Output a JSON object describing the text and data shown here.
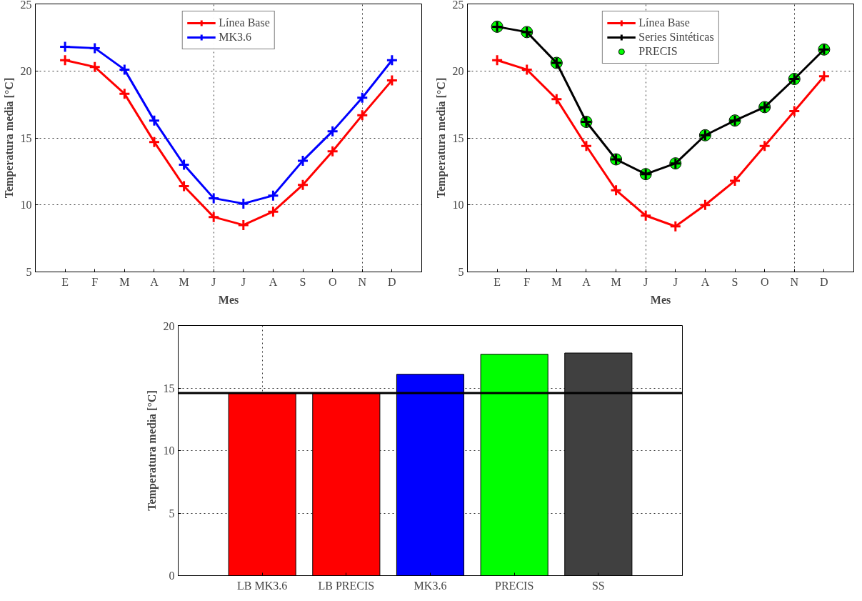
{
  "chart_data": [
    {
      "type": "line",
      "xlabel": "Mes",
      "ylabel": "Temperatura media [°C]",
      "categories": [
        "E",
        "F",
        "M",
        "A",
        "M",
        "J",
        "J",
        "A",
        "S",
        "O",
        "N",
        "D"
      ],
      "ylim": [
        5,
        25
      ],
      "yticks": [
        5,
        10,
        15,
        20,
        25
      ],
      "grid": true,
      "legend": "top",
      "marker": "cross",
      "line_style": "solid",
      "series": [
        {
          "name": "Línea Base",
          "color": "#ff0000",
          "values": [
            20.8,
            20.3,
            18.3,
            14.7,
            11.4,
            9.1,
            8.5,
            9.5,
            11.5,
            14.0,
            16.7,
            19.3
          ]
        },
        {
          "name": "MK3.6",
          "color": "#0000ff",
          "values": [
            21.8,
            21.7,
            20.1,
            16.3,
            13.0,
            10.5,
            10.1,
            10.7,
            13.3,
            15.5,
            18.0,
            20.8
          ]
        }
      ]
    },
    {
      "type": "line",
      "xlabel": "Mes",
      "ylabel": "Temperatura media [°C]",
      "categories": [
        "E",
        "F",
        "M",
        "A",
        "M",
        "J",
        "J",
        "A",
        "S",
        "O",
        "N",
        "D"
      ],
      "ylim": [
        5,
        25
      ],
      "yticks": [
        5,
        10,
        15,
        20,
        25
      ],
      "grid": true,
      "legend": "top",
      "marker": "cross",
      "line_style": "solid",
      "series": [
        {
          "name": "Línea Base",
          "color": "#ff0000",
          "values": [
            20.8,
            20.1,
            17.9,
            14.4,
            11.1,
            9.2,
            8.4,
            10.0,
            11.8,
            14.4,
            17.0,
            19.6
          ]
        },
        {
          "name": "Series Sintéticas",
          "color": "#000000",
          "values": [
            23.3,
            22.9,
            20.6,
            16.2,
            13.4,
            12.3,
            13.1,
            15.2,
            16.3,
            17.3,
            19.4,
            21.6
          ]
        },
        {
          "name": "PRECIS",
          "type": "scatter",
          "marker": "circle",
          "color": "#00ff00",
          "values": [
            23.3,
            22.9,
            20.6,
            16.2,
            13.4,
            12.3,
            13.1,
            15.2,
            16.3,
            17.3,
            19.4,
            21.6
          ]
        }
      ]
    },
    {
      "type": "bar",
      "ylabel": "Temperatura media [°C]",
      "categories": [
        "LB MK3.6",
        "LB PRECIS",
        "MK3.6",
        "PRECIS",
        "SS"
      ],
      "values": [
        14.6,
        14.6,
        16.1,
        17.7,
        17.8
      ],
      "colors": [
        "#ff0000",
        "#ff0000",
        "#0000ff",
        "#00ff00",
        "#404040"
      ],
      "ylim": [
        0,
        20
      ],
      "yticks": [
        0,
        5,
        10,
        15,
        20
      ],
      "grid": true,
      "ref_lines": [
        {
          "axis": "y",
          "value": 14.6,
          "color": "#000000"
        }
      ]
    }
  ]
}
